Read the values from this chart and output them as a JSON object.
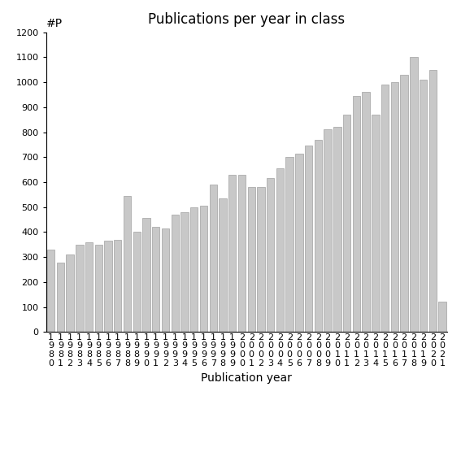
{
  "title": "Publications per year in class",
  "xlabel": "Publication year",
  "ylabel": "#P",
  "ylim": [
    0,
    1200
  ],
  "yticks": [
    0,
    100,
    200,
    300,
    400,
    500,
    600,
    700,
    800,
    900,
    1000,
    1100,
    1200
  ],
  "bar_color": "#c8c8c8",
  "bar_edge_color": "#a0a0a0",
  "years": [
    1980,
    1981,
    1982,
    1983,
    1984,
    1985,
    1986,
    1987,
    1988,
    1989,
    1990,
    1991,
    1992,
    1993,
    1994,
    1995,
    1996,
    1997,
    1998,
    1999,
    2000,
    2001,
    2002,
    2003,
    2004,
    2005,
    2006,
    2007,
    2008,
    2009,
    2010,
    2011,
    2012,
    2013,
    2014,
    2015,
    2016,
    2017,
    2018,
    2019,
    2020,
    2021
  ],
  "values": [
    330,
    278,
    310,
    348,
    360,
    350,
    365,
    370,
    545,
    400,
    455,
    420,
    415,
    470,
    480,
    500,
    505,
    590,
    535,
    630,
    630,
    580,
    580,
    615,
    655,
    700,
    715,
    745,
    770,
    810,
    820,
    870,
    945,
    960,
    870,
    990,
    1000,
    1030,
    1100,
    1010,
    1050,
    120
  ],
  "background_color": "#ffffff",
  "title_fontsize": 12,
  "axis_fontsize": 10,
  "tick_fontsize": 8
}
